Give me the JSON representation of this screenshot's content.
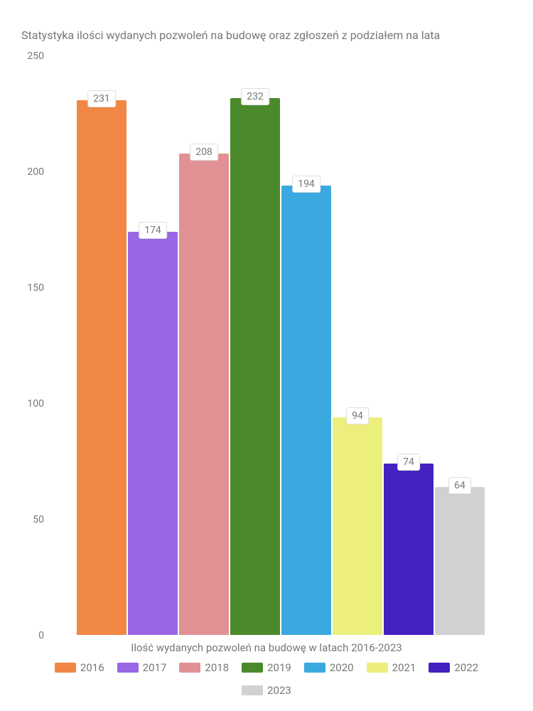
{
  "chart": {
    "type": "bar",
    "title": "Statystyka ilości wydanych pozwoleń na budowę oraz zgłoszeń z podziałem na lata",
    "xlabel": "Ilość wydanych pozwoleń na budowę w latach 2016-2023",
    "ylim_max": 250,
    "yticks": [
      0,
      50,
      100,
      150,
      200,
      250
    ],
    "categories": [
      "2016",
      "2017",
      "2018",
      "2019",
      "2020",
      "2021",
      "2022",
      "2023"
    ],
    "values": [
      231,
      174,
      208,
      232,
      194,
      94,
      74,
      64
    ],
    "bar_colors": [
      "#f08744",
      "#9966e6",
      "#e19193",
      "#4a8a2a",
      "#3aa9e0",
      "#edef7d",
      "#4421c0",
      "#d1d1d1"
    ],
    "background_color": "#ffffff",
    "text_color": "#777777",
    "label_bg": "#ffffff",
    "label_border": "#dddddd",
    "title_fontsize": 16,
    "tick_fontsize": 14,
    "legend_fontsize": 15,
    "bar_label_fontsize": 14
  }
}
